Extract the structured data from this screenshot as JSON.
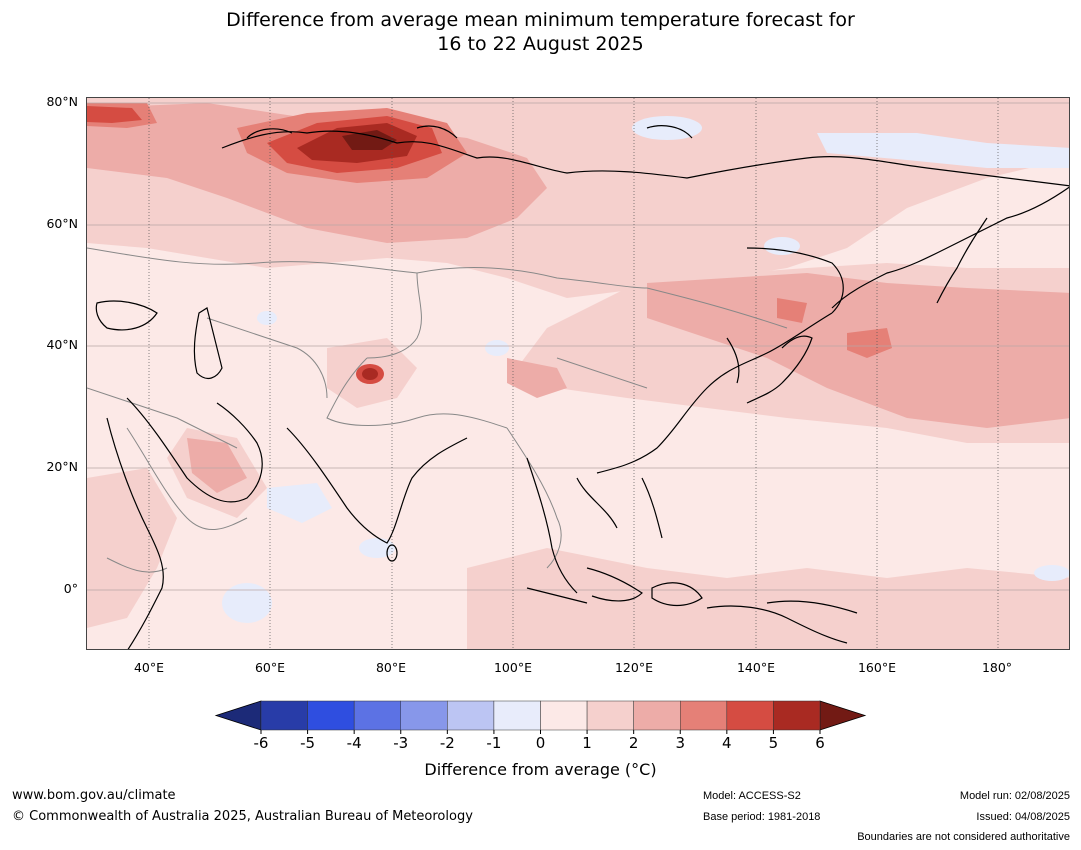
{
  "title": {
    "line1": "Difference from average mean minimum temperature forecast for",
    "line2": "16 to 22 August 2025"
  },
  "map": {
    "lat_labels": [
      "80°N",
      "60°N",
      "40°N",
      "20°N",
      "0°"
    ],
    "lon_labels": [
      "40°E",
      "60°E",
      "80°E",
      "100°E",
      "120°E",
      "140°E",
      "160°E",
      "180°"
    ],
    "colors": {
      "ocean_base": "#fce9e7",
      "light_blue": "#e7ecfb",
      "pink1": "#f5d0cd",
      "pink2": "#edaca8",
      "red1": "#e58077",
      "red2": "#d54c42",
      "red3": "#a92a22",
      "red4": "#721a14",
      "coast": "#000000",
      "border": "#888888"
    }
  },
  "colorbar": {
    "ticks": [
      "-6",
      "-5",
      "-4",
      "-3",
      "-2",
      "-1",
      "0",
      "1",
      "2",
      "3",
      "4",
      "5",
      "6"
    ],
    "colors": [
      "#1c2a78",
      "#283ca8",
      "#2f4ee0",
      "#5c72e4",
      "#8797ea",
      "#bcc5f3",
      "#e8ecfb",
      "#fce9e7",
      "#f5d0cd",
      "#edaca8",
      "#e58077",
      "#d54c42",
      "#a92a22",
      "#721a14"
    ],
    "label": "Difference from average (°C)"
  },
  "footer": {
    "website": "www.bom.gov.au/climate",
    "copyright": "© Commonwealth of Australia 2025, Australian Bureau of Meteorology",
    "model": "Model: ACCESS-S2",
    "base_period": "Base period: 1981-2018",
    "model_run": "Model run: 02/08/2025",
    "issued": "Issued: 04/08/2025",
    "boundaries": "Boundaries are not considered authoritative"
  }
}
